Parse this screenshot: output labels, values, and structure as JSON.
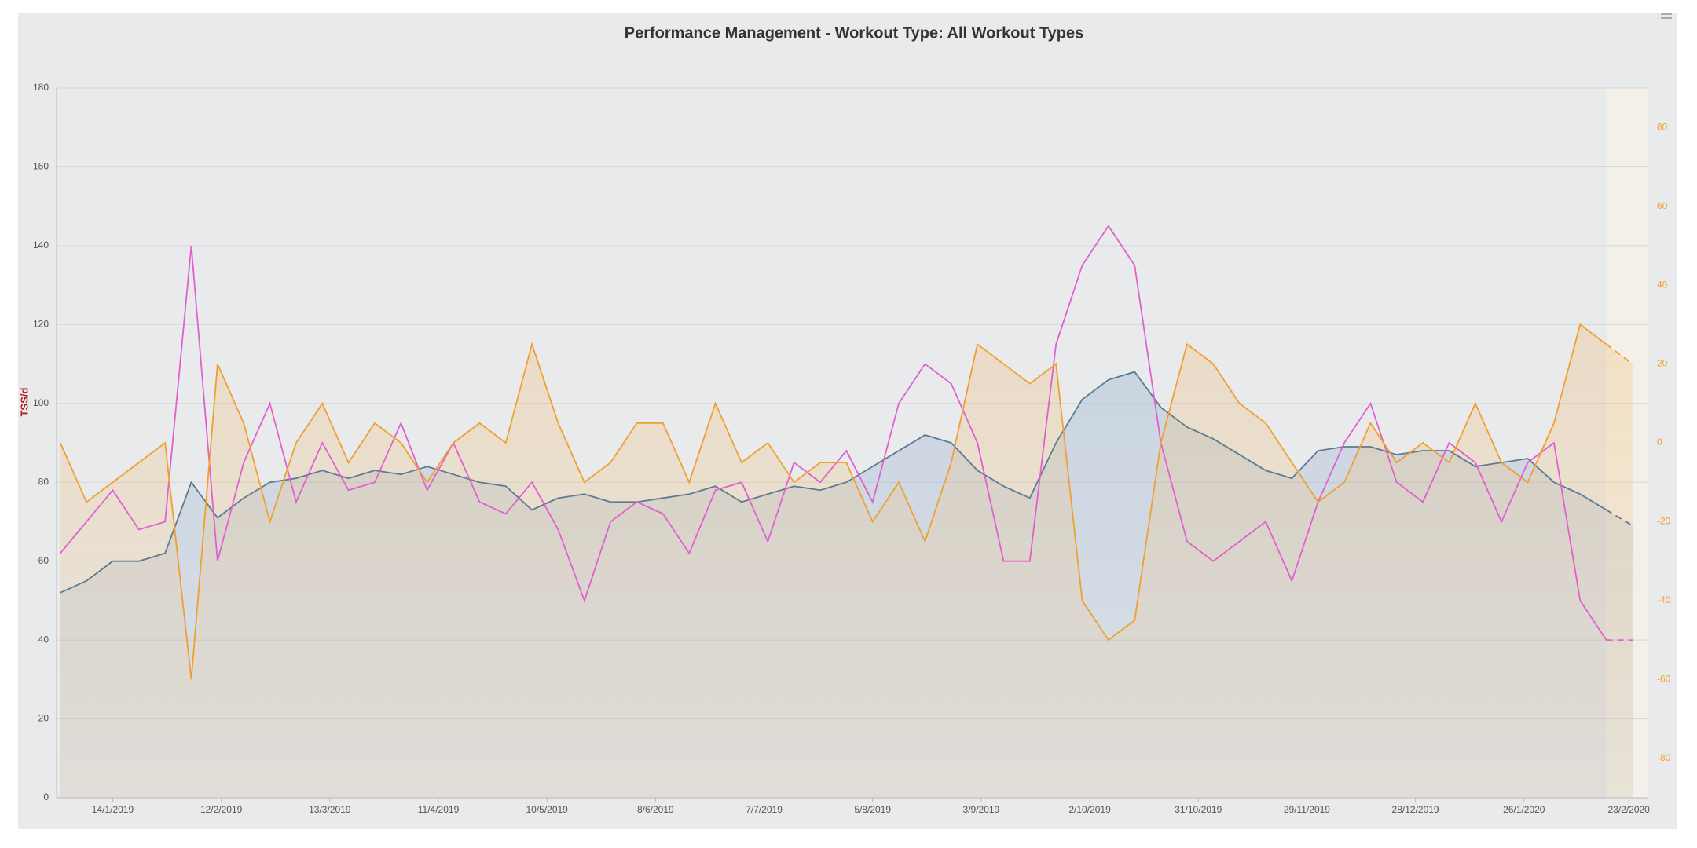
{
  "chart_data": {
    "type": "line",
    "title": "Performance Management - Workout Type: All Workout Types",
    "y_label": "TSS/d",
    "x": [
      "31/12/2018",
      "7/1/2019",
      "14/1/2019",
      "21/1/2019",
      "28/1/2019",
      "4/2/2019",
      "11/2/2019",
      "18/2/2019",
      "25/2/2019",
      "4/3/2019",
      "11/3/2019",
      "18/3/2019",
      "25/3/2019",
      "1/4/2019",
      "8/4/2019",
      "15/4/2019",
      "22/4/2019",
      "29/4/2019",
      "6/5/2019",
      "13/5/2019",
      "20/5/2019",
      "27/5/2019",
      "3/6/2019",
      "10/6/2019",
      "17/6/2019",
      "24/6/2019",
      "1/7/2019",
      "8/7/2019",
      "15/7/2019",
      "22/7/2019",
      "29/7/2019",
      "5/8/2019",
      "12/8/2019",
      "19/8/2019",
      "26/8/2019",
      "2/9/2019",
      "9/9/2019",
      "16/9/2019",
      "23/9/2019",
      "30/9/2019",
      "7/10/2019",
      "14/10/2019",
      "21/10/2019",
      "28/10/2019",
      "4/11/2019",
      "11/11/2019",
      "18/11/2019",
      "25/11/2019",
      "2/12/2019",
      "9/12/2019",
      "16/12/2019",
      "23/12/2019",
      "30/12/2019",
      "6/1/2020",
      "13/1/2020",
      "20/1/2020",
      "27/1/2020",
      "3/2/2020",
      "10/2/2020",
      "17/2/2020",
      "24/2/2020"
    ],
    "series": [
      {
        "color": "#5d7a93",
        "fill": true,
        "axis": "y",
        "values": [
          52,
          55,
          60,
          60,
          62,
          80,
          71,
          76,
          80,
          81,
          83,
          81,
          83,
          82,
          84,
          82,
          80,
          79,
          73,
          76,
          77,
          75,
          75,
          76,
          77,
          79,
          75,
          77,
          79,
          78,
          80,
          84,
          88,
          92,
          90,
          83,
          79,
          76,
          90,
          101,
          106,
          108,
          99,
          94,
          91,
          87,
          83,
          81,
          88,
          89,
          89,
          87,
          88,
          88,
          84,
          85,
          86,
          80,
          77,
          73,
          69
        ]
      },
      {
        "color": "#e060d0",
        "fill": false,
        "axis": "y",
        "values": [
          62,
          70,
          78,
          68,
          70,
          140,
          60,
          85,
          100,
          75,
          90,
          78,
          80,
          95,
          78,
          90,
          75,
          72,
          80,
          68,
          50,
          70,
          75,
          72,
          62,
          78,
          80,
          65,
          85,
          80,
          88,
          75,
          100,
          110,
          105,
          90,
          60,
          60,
          115,
          135,
          145,
          135,
          90,
          65,
          60,
          65,
          70,
          55,
          75,
          90,
          100,
          80,
          75,
          90,
          85,
          70,
          85,
          90,
          50,
          40,
          40
        ]
      },
      {
        "color": "#f0a030",
        "fill": true,
        "axis": "y2",
        "values": [
          0,
          -15,
          -10,
          -5,
          0,
          -60,
          20,
          5,
          -20,
          0,
          10,
          -5,
          5,
          0,
          -10,
          0,
          5,
          0,
          25,
          5,
          -10,
          -5,
          5,
          5,
          -10,
          10,
          -5,
          0,
          -10,
          -5,
          -5,
          -20,
          -10,
          -25,
          -5,
          25,
          20,
          15,
          20,
          -40,
          -50,
          -45,
          0,
          25,
          20,
          10,
          5,
          -5,
          -15,
          -10,
          5,
          -5,
          0,
          -5,
          10,
          -5,
          -10,
          5,
          30,
          25,
          20
        ]
      }
    ],
    "dashed_from": "17/2/2020",
    "xlim": [
      "30/12/2018",
      "28/2/2020"
    ],
    "xticks": [
      "14/1/2019",
      "12/2/2019",
      "13/3/2019",
      "11/4/2019",
      "10/5/2019",
      "8/6/2019",
      "7/7/2019",
      "5/8/2019",
      "3/9/2019",
      "2/10/2019",
      "31/10/2019",
      "29/11/2019",
      "28/12/2019",
      "26/1/2020",
      "23/2/2020"
    ],
    "ylim": [
      0,
      180
    ],
    "yticks": [
      0,
      20,
      40,
      60,
      80,
      100,
      120,
      140,
      160,
      180
    ],
    "y2lim": [
      -90,
      90
    ],
    "y2ticks": [
      -80,
      -60,
      -40,
      -20,
      0,
      20,
      40,
      60,
      80
    ],
    "grid": true
  }
}
